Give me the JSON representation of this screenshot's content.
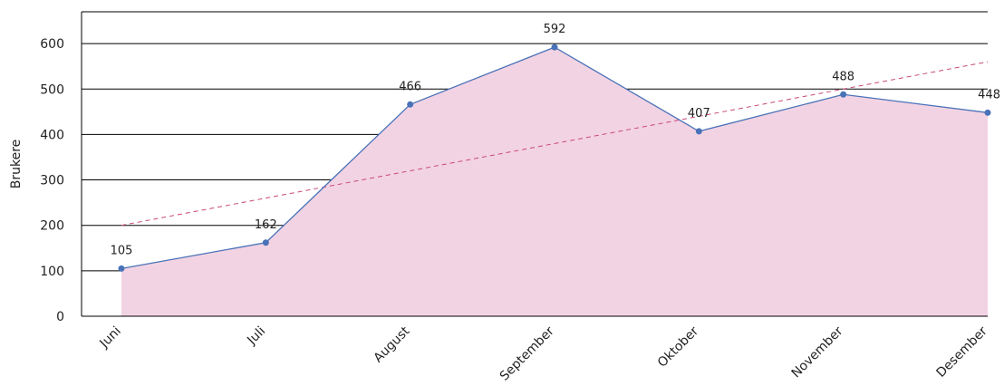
{
  "chart_data": {
    "type": "area",
    "title": "",
    "ylabel": "Brukere",
    "xlabel": "",
    "categories": [
      "Juni",
      "Juli",
      "August",
      "September",
      "Oktober",
      "November",
      "Desember"
    ],
    "series": [
      {
        "values": [
          105,
          162,
          466,
          592,
          407,
          488,
          448
        ],
        "data_labels": [
          "105",
          "162",
          "466",
          "592",
          "407",
          "488",
          "448"
        ]
      }
    ],
    "trendline": {
      "style": "dashed",
      "start": 200,
      "end": 560
    },
    "ylim": [
      0,
      670
    ],
    "yticks": [
      0,
      100,
      200,
      300,
      400,
      500,
      600
    ],
    "ytick_labels": [
      "0",
      "100",
      "200",
      "300",
      "400",
      "500",
      "600"
    ],
    "grid": true,
    "colors": {
      "area_fill": "#f2d3e3",
      "line": "#4a72b8",
      "marker": "#4a72b8",
      "trendline": "#c8487a",
      "gridline": "#000000"
    }
  }
}
